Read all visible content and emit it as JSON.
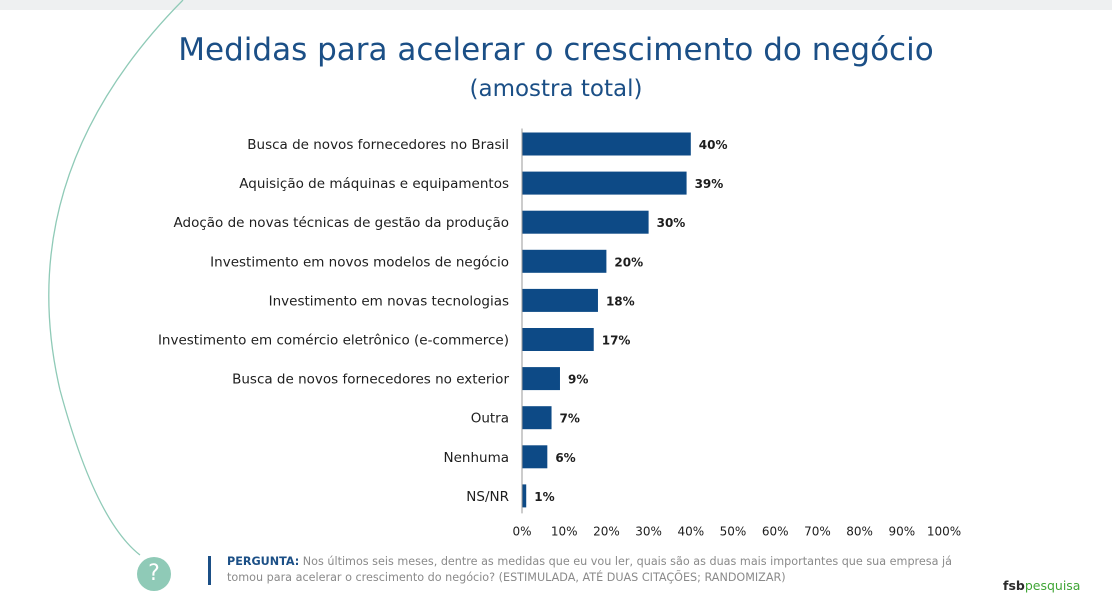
{
  "title": "Medidas para acelerar o crescimento do negócio",
  "subtitle": "(amostra total)",
  "colors": {
    "bar": "#0d4a86",
    "title": "#1b4f86",
    "arc": "#8fcab7",
    "logo_green": "#3fa535"
  },
  "chart_data": {
    "type": "bar",
    "orientation": "horizontal",
    "categories": [
      "Busca de novos fornecedores no Brasil",
      "Aquisição de máquinas e equipamentos",
      "Adoção de novas técnicas de gestão da produção",
      "Investimento em novos modelos de negócio",
      "Investimento em novas tecnologias",
      "Investimento em comércio eletrônico (e-commerce)",
      "Busca de novos fornecedores no exterior",
      "Outra",
      "Nenhuma",
      "NS/NR"
    ],
    "values": [
      40,
      39,
      30,
      20,
      18,
      17,
      9,
      7,
      6,
      1
    ],
    "value_labels": [
      "40%",
      "39%",
      "30%",
      "20%",
      "18%",
      "17%",
      "9%",
      "7%",
      "6%",
      "1%"
    ],
    "xlim": [
      0,
      100
    ],
    "ticks": [
      0,
      10,
      20,
      30,
      40,
      50,
      60,
      70,
      80,
      90,
      100
    ],
    "tick_labels": [
      "0%",
      "10%",
      "20%",
      "30%",
      "40%",
      "50%",
      "60%",
      "70%",
      "80%",
      "90%",
      "100%"
    ],
    "grid": false
  },
  "question": {
    "label": "PERGUNTA:",
    "text": "Nos últimos seis meses, dentre as medidas que eu vou ler, quais são as duas mais importantes que sua empresa já tomou para acelerar o crescimento do negócio? (ESTIMULADA, ATÉ DUAS CITAÇÕES; RANDOMIZAR)"
  },
  "help_icon": {
    "icon": "question-mark-icon",
    "glyph": "?"
  },
  "logo": {
    "part1": "fsb",
    "part2": "pesquisa"
  }
}
